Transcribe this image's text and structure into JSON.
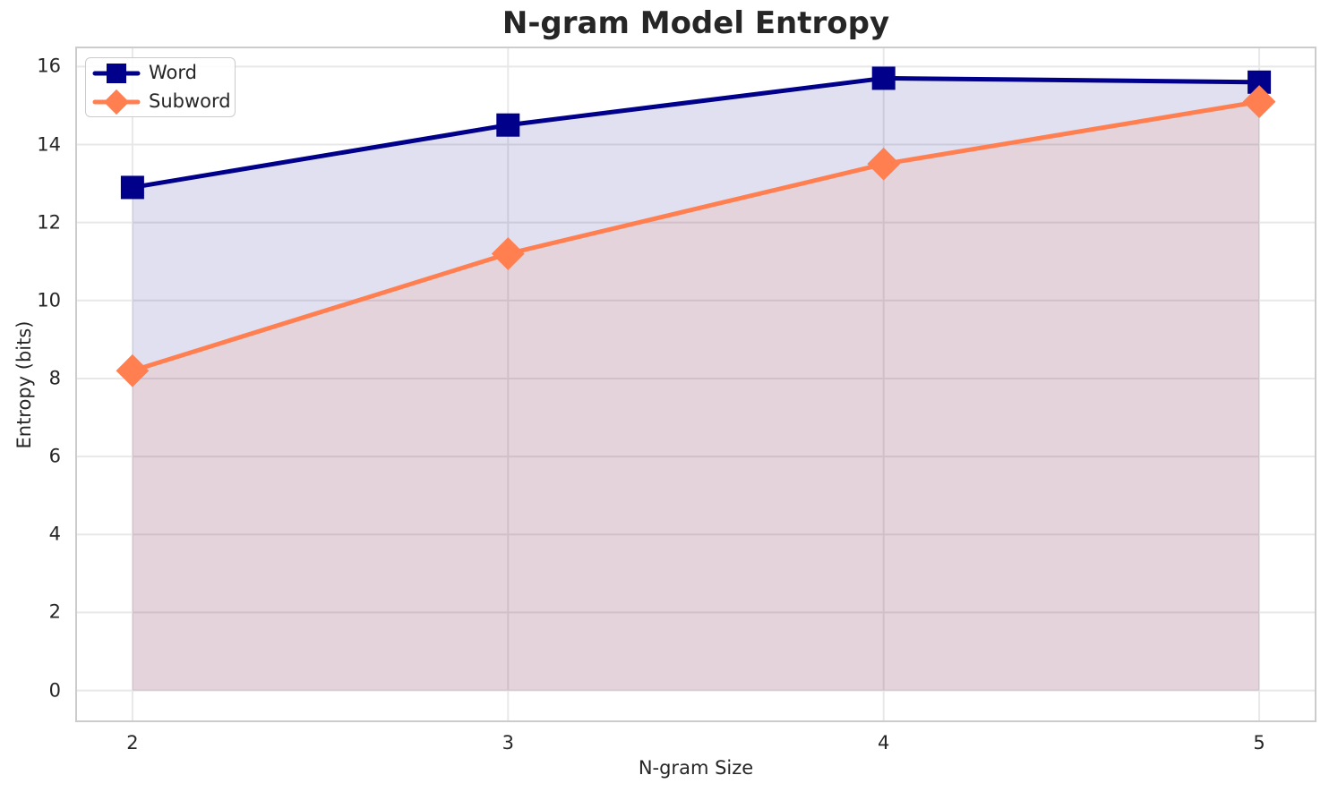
{
  "chart_data": {
    "type": "line",
    "title": "N-gram Model Entropy",
    "xlabel": "N-gram Size",
    "ylabel": "Entropy (bits)",
    "x": [
      2,
      3,
      4,
      5
    ],
    "series": [
      {
        "name": "Word",
        "values": [
          12.9,
          14.5,
          15.7,
          15.6
        ],
        "color": "#00008B",
        "marker": "square",
        "fill_to_zero": true,
        "fill_opacity": 0.12
      },
      {
        "name": "Subword",
        "values": [
          8.2,
          11.2,
          13.5,
          15.1
        ],
        "color": "#FF7F50",
        "marker": "diamond",
        "fill_to_zero": true,
        "fill_opacity": 0.13
      }
    ],
    "xticks": [
      2,
      3,
      4,
      5
    ],
    "yticks": [
      0,
      2,
      4,
      6,
      8,
      10,
      12,
      14,
      16
    ],
    "xlim": [
      1.85,
      5.15
    ],
    "ylim": [
      -0.79,
      16.49
    ],
    "grid": true,
    "legend_position": "upper left",
    "styles": {
      "grid_color": "#e8e8e8",
      "spine_color": "#cccccc",
      "text_color": "#262626",
      "background": "#ffffff",
      "line_width": 5,
      "marker_size": 26
    }
  }
}
